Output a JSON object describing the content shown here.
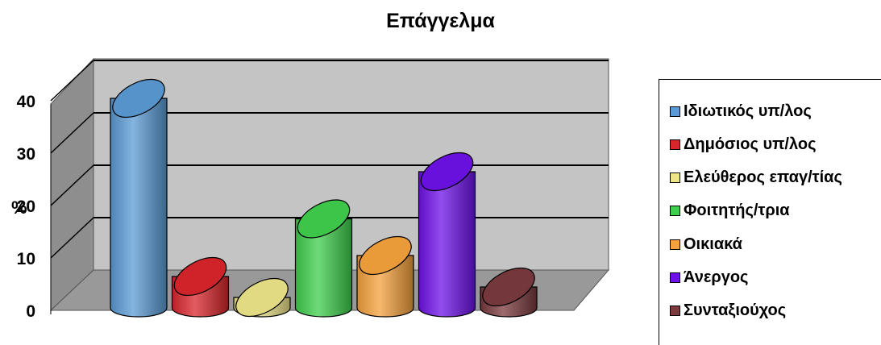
{
  "chart_data": {
    "type": "bar",
    "style": "3d-cylinder",
    "title": "Επάγγελμα",
    "ylabel": "%",
    "ylim": [
      0,
      45
    ],
    "yticks": [
      0,
      10,
      20,
      30,
      40
    ],
    "grid": true,
    "legend_position": "right",
    "series": [
      {
        "name": "Ιδιωτικός υπ/λος",
        "value": 40,
        "color": "#5b9bd5"
      },
      {
        "name": "Δημόσιος υπ/λος",
        "value": 6,
        "color": "#d9262b"
      },
      {
        "name": "Ελεύθερος επαγ/τίας",
        "value": 2,
        "color": "#eee58a"
      },
      {
        "name": "Φοιτητής/τρια",
        "value": 17,
        "color": "#3fcf4c"
      },
      {
        "name": "Οικιακά",
        "value": 10,
        "color": "#f5a23c"
      },
      {
        "name": "Άνεργος",
        "value": 26,
        "color": "#6e12e8"
      },
      {
        "name": "Συνταξιούχος",
        "value": 4,
        "color": "#7a3a3e"
      }
    ]
  }
}
